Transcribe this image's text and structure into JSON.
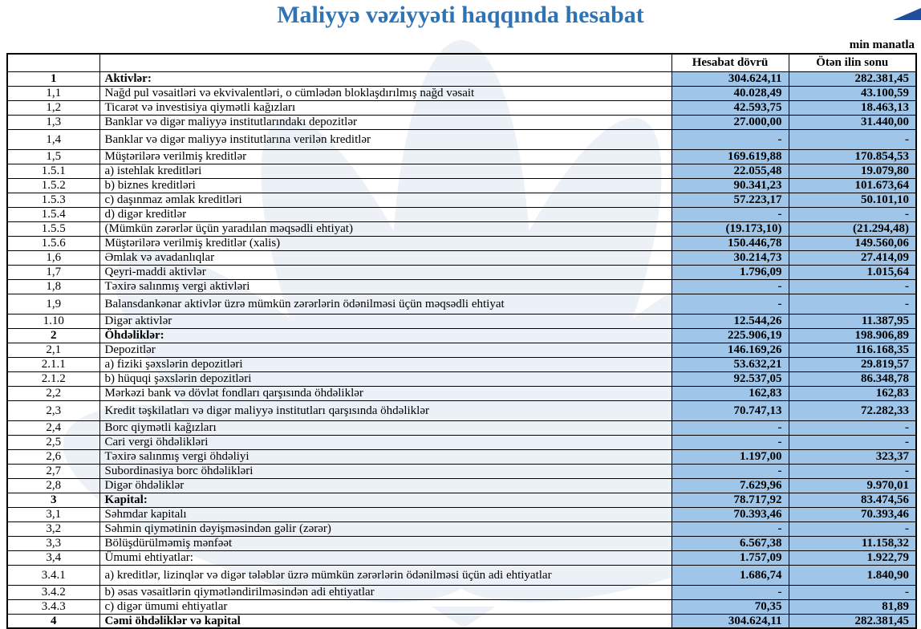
{
  "title": "Maliyyə vəziyyəti haqqında hesabat",
  "unit_note": "min manatla",
  "colors": {
    "title-blue": "#2E74B5",
    "triangle-blue": "#1F4E9C",
    "cell-blue": "#9FC5E8",
    "watermark-blue": "#ECF1F8"
  },
  "icons": {
    "corner_triangle": "corner-triangle-icon",
    "watermark": "lotus-flower-watermark-icon"
  },
  "table": {
    "col_headers": [
      "Hesabat dövrü",
      "Ötən ilin sonu"
    ],
    "rows": [
      {
        "no": "1",
        "label": "Aktivlər:",
        "current": "304.624,11",
        "prior": "282.381,45",
        "bold": true
      },
      {
        "no": "1,1",
        "label": "Nağd pul vəsaitləri və  ekvivalentləri, o cümlədən bloklaşdırılmış nağd vəsait",
        "current": "40.028,49",
        "prior": "43.100,59"
      },
      {
        "no": "1,2",
        "label": "Ticarət və investisiya qiymətli kağızları",
        "current": "42.593,75",
        "prior": "18.463,13"
      },
      {
        "no": "1,3",
        "label": "Banklar və digər maliyyə institutlarındakı depozitlər",
        "current": "27.000,00",
        "prior": "31.440,00"
      },
      {
        "no": "1,4",
        "label": "Banklar və digər maliyyə institutlarına verilən kreditlər",
        "current": "-",
        "prior": "-",
        "tall": true
      },
      {
        "no": "1,5",
        "label": "Müştərilərə verilmiş kreditlər",
        "current": "169.619,88",
        "prior": "170.854,53"
      },
      {
        "no": "1.5.1",
        "label": "a) istehlak kreditləri",
        "current": "22.055,48",
        "prior": "19.079,80"
      },
      {
        "no": "1.5.2",
        "label": "b) biznes kreditləri",
        "current": "90.341,23",
        "prior": "101.673,64"
      },
      {
        "no": "1.5.3",
        "label": "c) daşınmaz əmlak kreditləri",
        "current": "57.223,17",
        "prior": "50.101,10"
      },
      {
        "no": "1.5.4",
        "label": "d) digər kreditlər",
        "current": "-",
        "prior": "-"
      },
      {
        "no": "1.5.5",
        "label": "(Mümkün zərərlər üçün yaradılan məqsədli ehtiyat)",
        "current": "(19.173,10)",
        "prior": "(21.294,48)"
      },
      {
        "no": "1.5.6",
        "label": "Müştərilərə verilmiş kreditlər (xalis)",
        "current": "150.446,78",
        "prior": "149.560,06"
      },
      {
        "no": "1,6",
        "label": "Əmlak və avadanlıqlar",
        "current": "30.214,73",
        "prior": "27.414,09"
      },
      {
        "no": "1,7",
        "label": "Qeyri-maddi aktivlər",
        "current": "1.796,09",
        "prior": "1.015,64"
      },
      {
        "no": "1,8",
        "label": "Təxirə salınmış vergi aktivləri",
        "current": "-",
        "prior": "-"
      },
      {
        "no": "1,9",
        "label": "Balansdankənar aktivlər üzrə mümkün zərərlərin ödənilməsi üçün məqsədli ehtiyat",
        "current": "-",
        "prior": "-",
        "tall": true
      },
      {
        "no": "1.10",
        "label": "Digər aktivlər",
        "current": "12.544,26",
        "prior": "11.387,95"
      },
      {
        "no": "2",
        "label": "Öhdəliklər:",
        "current": "225.906,19",
        "prior": "198.906,89",
        "bold": true
      },
      {
        "no": "2,1",
        "label": "Depozitlər",
        "current": "146.169,26",
        "prior": "116.168,35"
      },
      {
        "no": "2.1.1",
        "label": "a) fiziki şəxslərin depozitləri",
        "current": "53.632,21",
        "prior": "29.819,57"
      },
      {
        "no": "2.1.2",
        "label": "b) hüquqi şəxslərin depozitləri",
        "current": "92.537,05",
        "prior": "86.348,78"
      },
      {
        "no": "2,2",
        "label": "Mərkəzi bank və dövlət fondları qarşısında öhdəliklər",
        "current": "162,83",
        "prior": "162,83"
      },
      {
        "no": "2,3",
        "label": "Kredit təşkilatları və digər maliyyə institutları qarşısında öhdəliklər",
        "current": "70.747,13",
        "prior": "72.282,33",
        "tall": true
      },
      {
        "no": "2,4",
        "label": "Borc qiymətli kağızları",
        "current": "-",
        "prior": "-"
      },
      {
        "no": "2,5",
        "label": "Cari vergi öhdəlikləri",
        "current": "-",
        "prior": "-"
      },
      {
        "no": "2,6",
        "label": "Təxirə salınmış vergi öhdəliyi",
        "current": "1.197,00",
        "prior": "323,37"
      },
      {
        "no": "2,7",
        "label": "Subordinasiya borc öhdəlikləri",
        "current": "-",
        "prior": "-"
      },
      {
        "no": "2,8",
        "label": "Digər öhdəliklər",
        "current": "7.629,96",
        "prior": "9.970,01"
      },
      {
        "no": "3",
        "label": "Kapital:",
        "current": "78.717,92",
        "prior": "83.474,56",
        "bold": true
      },
      {
        "no": "3,1",
        "label": "Səhmdar kapitalı",
        "current": "70.393,46",
        "prior": "70.393,46"
      },
      {
        "no": "3,2",
        "label": "Səhmin qiymətinin dəyişməsindən gəlir (zərər)",
        "current": "-",
        "prior": "-"
      },
      {
        "no": "3,3",
        "label": "Bölüşdürülməmiş mənfəət",
        "current": "6.567,38",
        "prior": "11.158,32"
      },
      {
        "no": "3,4",
        "label": "Ümumi ehtiyatlar:",
        "current": "1.757,09",
        "prior": "1.922,79"
      },
      {
        "no": "3.4.1",
        "label": "a) kreditlər, lizinqlər və digər tələblər üzrə mümkün zərərlərin ödənilməsi üçün adi ehtiyatlar",
        "current": "1.686,74",
        "prior": "1.840,90",
        "tall": true
      },
      {
        "no": "3.4.2",
        "label": "b) əsas vəsaitlərin qiymətləndirilməsindən adi ehtiyatlar",
        "current": "-",
        "prior": "-"
      },
      {
        "no": "3.4.3",
        "label": "c) digər ümumi ehtiyatlar",
        "current": "70,35",
        "prior": "81,89"
      },
      {
        "no": "4",
        "label": "Cəmi öhdəliklər və kapital",
        "current": "304.624,11",
        "prior": "282.381,45",
        "bold": true
      }
    ]
  }
}
